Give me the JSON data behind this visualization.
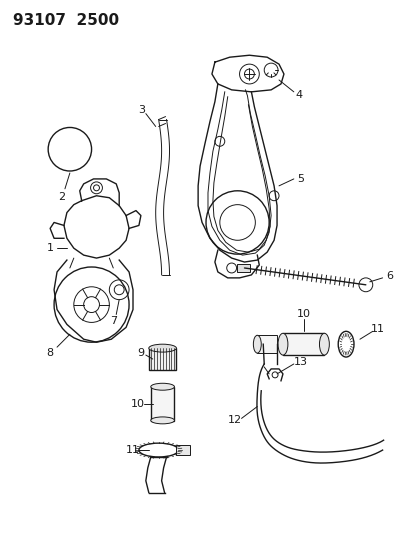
{
  "title": "93107  2500",
  "bg_color": "#ffffff",
  "line_color": "#1a1a1a",
  "label_fontsize": 8,
  "fig_width": 4.14,
  "fig_height": 5.33,
  "dpi": 100
}
